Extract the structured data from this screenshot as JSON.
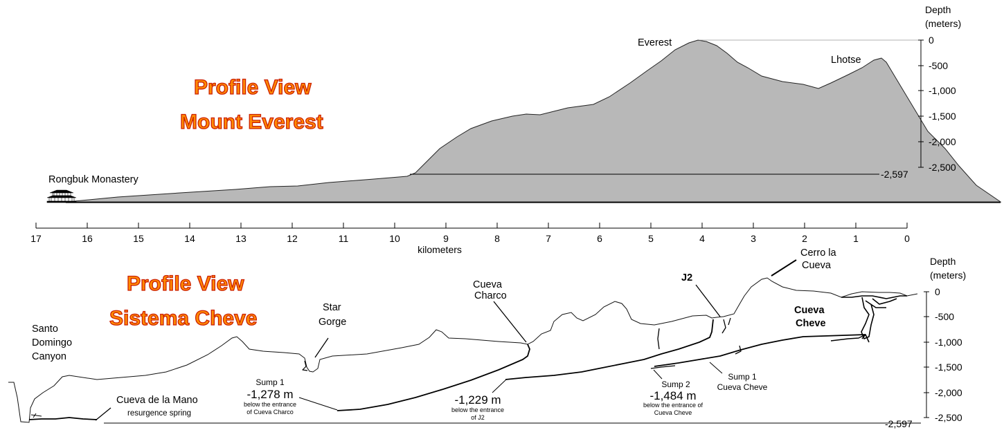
{
  "everest": {
    "title_line1": "Profile View",
    "title_line2": "Mount Everest",
    "depth_label_line1": "Depth",
    "depth_label_line2": "(meters)",
    "depth_ticks": [
      "0",
      "-500",
      "-1,000",
      "-1,500",
      "-2,000",
      "-2,500"
    ],
    "depth_marker": "-2,597",
    "labels": {
      "everest": "Everest",
      "lhotse": "Lhotse",
      "rongbuk": "Rongbuk Monastery"
    },
    "fill_color": "#b8b8b8"
  },
  "distance_axis": {
    "ticks": [
      "17",
      "16",
      "15",
      "14",
      "13",
      "12",
      "11",
      "10",
      "9",
      "8",
      "7",
      "6",
      "5",
      "4",
      "3",
      "2",
      "1",
      "0"
    ],
    "unit_label": "kilometers"
  },
  "cheve": {
    "title_line1": "Profile View",
    "title_line2": "Sistema Cheve",
    "depth_label_line1": "Depth",
    "depth_label_line2": "(meters)",
    "depth_ticks": [
      "0",
      "-500",
      "-1,000",
      "-1,500",
      "-2,000",
      "-2,500"
    ],
    "depth_marker": "-2,597",
    "labels": {
      "santo_domingo": [
        "Santo",
        "Domingo",
        "Canyon"
      ],
      "cueva_mano": "Cueva de la Mano",
      "resurgence": "resurgence spring",
      "star_gorge": [
        "Star",
        "Gorge"
      ],
      "cueva_charco": [
        "Cueva",
        "Charco"
      ],
      "j2": "J2",
      "cerro": [
        "Cerro la",
        "Cueva"
      ],
      "cueva_cheve": [
        "Cueva",
        "Cheve"
      ],
      "sump1_charco": {
        "title": "Sump 1",
        "depth": "-1,278 m",
        "note": [
          "below the entrance",
          "of Cueva Charco"
        ]
      },
      "sump_j2": {
        "depth": "-1,229 m",
        "note": [
          "below the entrance",
          "of J2"
        ]
      },
      "sump2_cheve": {
        "title": "Sump 2",
        "depth": "-1,484 m",
        "note": [
          "below the entrance of",
          "Cueva Cheve"
        ]
      },
      "sump1_cheve": [
        "Sump 1",
        "Cueva Cheve"
      ]
    }
  }
}
